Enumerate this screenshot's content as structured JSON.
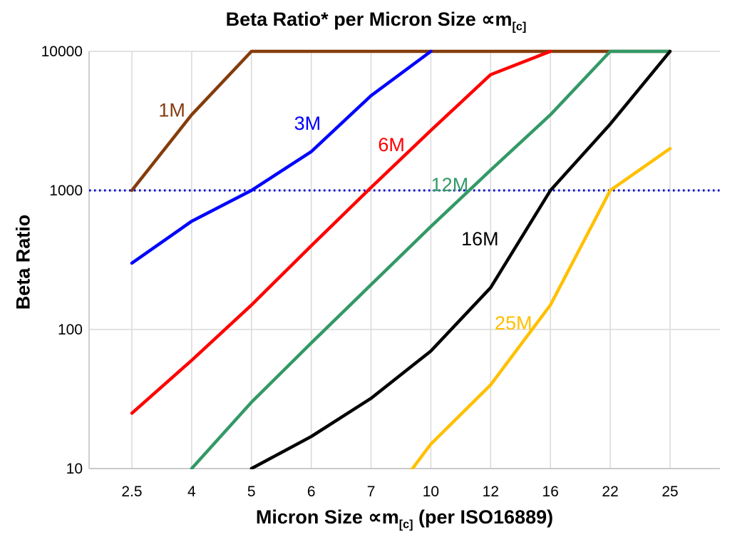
{
  "chart_data": {
    "type": "line",
    "title_parts": {
      "main": "Beta Ratio* per Micron Size ",
      "sym": "∝m",
      "sub": "[c]"
    },
    "ylabel": "Beta Ratio",
    "xlabel_parts": {
      "pre": "Micron Size ",
      "sym": "∝m",
      "sub": "[c]",
      "post": " (per ISO16889)"
    },
    "x_categories": [
      "2.5",
      "4",
      "5",
      "6",
      "7",
      "10",
      "12",
      "16",
      "22",
      "25"
    ],
    "y_ticks": [
      10,
      100,
      1000,
      10000
    ],
    "y_scale": "log",
    "ylim": [
      10,
      10000
    ],
    "grid": true,
    "grid_color": "#d9d9d9",
    "axis_color": "#bfbfbf",
    "reference_line": {
      "value": 1000,
      "color": "#0000cc",
      "style": "dotted"
    },
    "series": [
      {
        "name": "1M",
        "color": "#843c0c",
        "values": [
          1000,
          3500,
          10000,
          10000,
          10000,
          10000,
          10000,
          10000,
          10000,
          10000
        ],
        "label_fx": 0.11,
        "label_fy": 0.156
      },
      {
        "name": "3M",
        "color": "#0000ff",
        "values": [
          300,
          600,
          1000,
          1900,
          4800,
          10000,
          null,
          null,
          null,
          null
        ],
        "label_fx": 0.325,
        "label_fy": 0.188
      },
      {
        "name": "6M",
        "color": "#ff0000",
        "values": [
          25,
          60,
          150,
          400,
          1050,
          2700,
          6800,
          10000,
          null,
          null
        ],
        "label_fx": 0.458,
        "label_fy": 0.239
      },
      {
        "name": "12M",
        "color": "#339966",
        "values": [
          null,
          10,
          30,
          80,
          210,
          550,
          1400,
          3500,
          10000,
          10000
        ],
        "label_fx": 0.542,
        "label_fy": 0.335
      },
      {
        "name": "16M",
        "color": "#000000",
        "values": [
          null,
          null,
          10,
          17,
          32,
          70,
          200,
          1000,
          3000,
          10000
        ],
        "label_fx": 0.59,
        "label_fy": 0.465
      },
      {
        "name": "25M",
        "color": "#ffc000",
        "values": [
          null,
          null,
          null,
          null,
          4,
          15,
          40,
          150,
          1000,
          2000
        ],
        "label_fx": 0.643,
        "label_fy": 0.667
      }
    ],
    "legend_position": "inline-on-lines"
  }
}
